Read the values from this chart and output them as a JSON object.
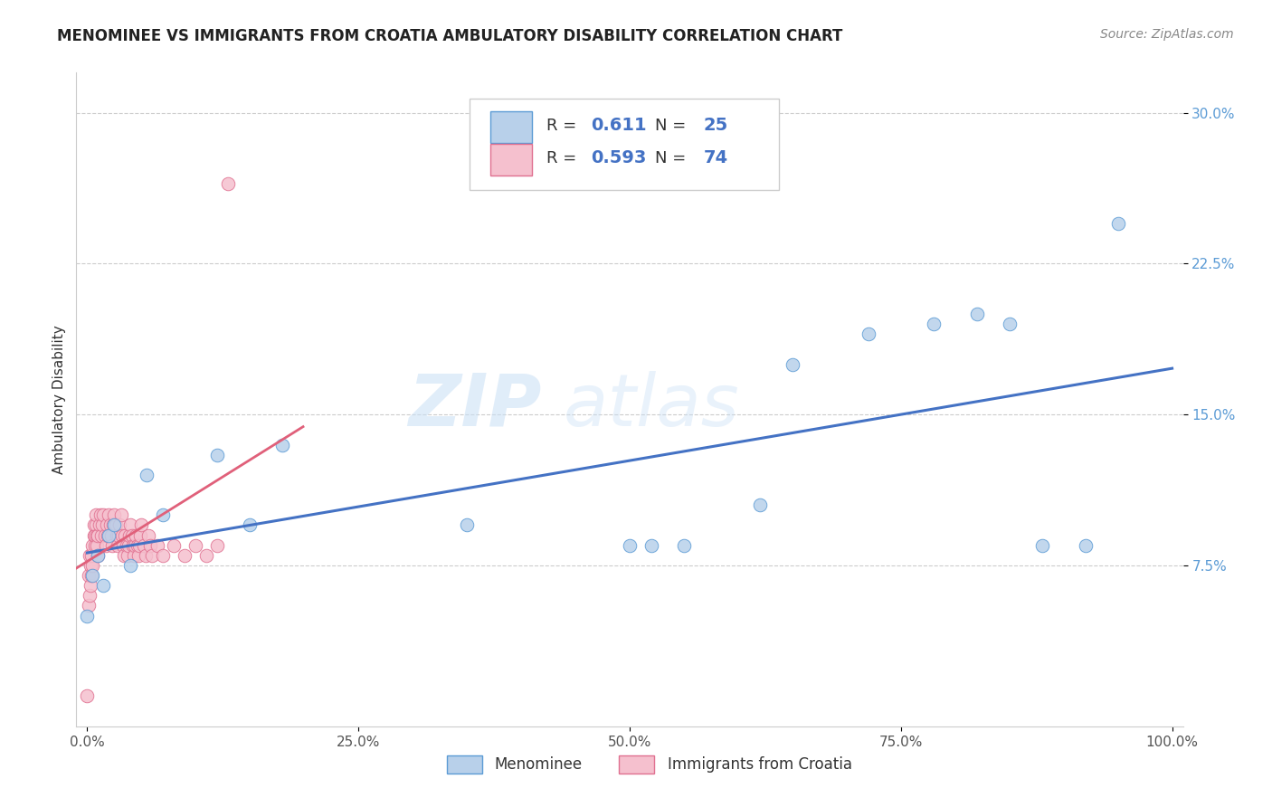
{
  "title": "MENOMINEE VS IMMIGRANTS FROM CROATIA AMBULATORY DISABILITY CORRELATION CHART",
  "source": "Source: ZipAtlas.com",
  "ylabel": "Ambulatory Disability",
  "watermark_part1": "ZIP",
  "watermark_part2": "atlas",
  "xlim": [
    -0.01,
    1.01
  ],
  "ylim": [
    -0.005,
    0.32
  ],
  "xticks": [
    0.0,
    0.25,
    0.5,
    0.75,
    1.0
  ],
  "xtick_labels": [
    "0.0%",
    "25.0%",
    "50.0%",
    "75.0%",
    "100.0%"
  ],
  "yticks": [
    0.075,
    0.15,
    0.225,
    0.3
  ],
  "ytick_labels": [
    "7.5%",
    "15.0%",
    "22.5%",
    "30.0%"
  ],
  "grid_color": "#cccccc",
  "background_color": "#ffffff",
  "menominee_color": "#b8d0ea",
  "menominee_edge_color": "#5b9bd5",
  "croatia_color": "#f5c0ce",
  "croatia_edge_color": "#e07090",
  "menominee_R": 0.611,
  "menominee_N": 25,
  "croatia_R": 0.593,
  "croatia_N": 74,
  "menominee_line_color": "#4472c4",
  "croatia_line_color": "#e0607a",
  "legend_label_1": "Menominee",
  "legend_label_2": "Immigrants from Croatia",
  "menominee_x": [
    0.0,
    0.005,
    0.01,
    0.015,
    0.02,
    0.025,
    0.04,
    0.055,
    0.07,
    0.12,
    0.15,
    0.18,
    0.35,
    0.5,
    0.52,
    0.55,
    0.62,
    0.65,
    0.72,
    0.78,
    0.82,
    0.85,
    0.88,
    0.92,
    0.95
  ],
  "menominee_y": [
    0.05,
    0.07,
    0.08,
    0.065,
    0.09,
    0.095,
    0.075,
    0.12,
    0.1,
    0.13,
    0.095,
    0.135,
    0.095,
    0.085,
    0.085,
    0.085,
    0.105,
    0.175,
    0.19,
    0.195,
    0.2,
    0.195,
    0.085,
    0.085,
    0.245
  ],
  "croatia_x": [
    0.0,
    0.001,
    0.001,
    0.002,
    0.002,
    0.003,
    0.003,
    0.004,
    0.004,
    0.005,
    0.005,
    0.006,
    0.006,
    0.007,
    0.007,
    0.008,
    0.008,
    0.009,
    0.009,
    0.01,
    0.01,
    0.011,
    0.012,
    0.013,
    0.014,
    0.015,
    0.016,
    0.017,
    0.018,
    0.019,
    0.02,
    0.021,
    0.022,
    0.023,
    0.024,
    0.025,
    0.026,
    0.027,
    0.028,
    0.029,
    0.03,
    0.031,
    0.032,
    0.033,
    0.034,
    0.035,
    0.036,
    0.037,
    0.038,
    0.039,
    0.04,
    0.041,
    0.042,
    0.043,
    0.044,
    0.045,
    0.046,
    0.047,
    0.048,
    0.049,
    0.05,
    0.052,
    0.054,
    0.056,
    0.058,
    0.06,
    0.065,
    0.07,
    0.08,
    0.09,
    0.1,
    0.11,
    0.12,
    0.13
  ],
  "croatia_y": [
    0.01,
    0.055,
    0.07,
    0.06,
    0.08,
    0.065,
    0.075,
    0.07,
    0.08,
    0.075,
    0.085,
    0.09,
    0.095,
    0.085,
    0.09,
    0.095,
    0.1,
    0.09,
    0.085,
    0.08,
    0.09,
    0.095,
    0.1,
    0.09,
    0.095,
    0.1,
    0.09,
    0.085,
    0.095,
    0.09,
    0.1,
    0.095,
    0.09,
    0.085,
    0.095,
    0.1,
    0.095,
    0.09,
    0.085,
    0.09,
    0.095,
    0.1,
    0.09,
    0.085,
    0.08,
    0.09,
    0.085,
    0.08,
    0.085,
    0.09,
    0.095,
    0.09,
    0.085,
    0.08,
    0.085,
    0.09,
    0.085,
    0.08,
    0.085,
    0.09,
    0.095,
    0.085,
    0.08,
    0.09,
    0.085,
    0.08,
    0.085,
    0.08,
    0.085,
    0.08,
    0.085,
    0.08,
    0.085,
    0.265
  ],
  "croatia_line_x": [
    -0.01,
    0.18
  ],
  "menominee_line_x": [
    0.0,
    1.0
  ]
}
